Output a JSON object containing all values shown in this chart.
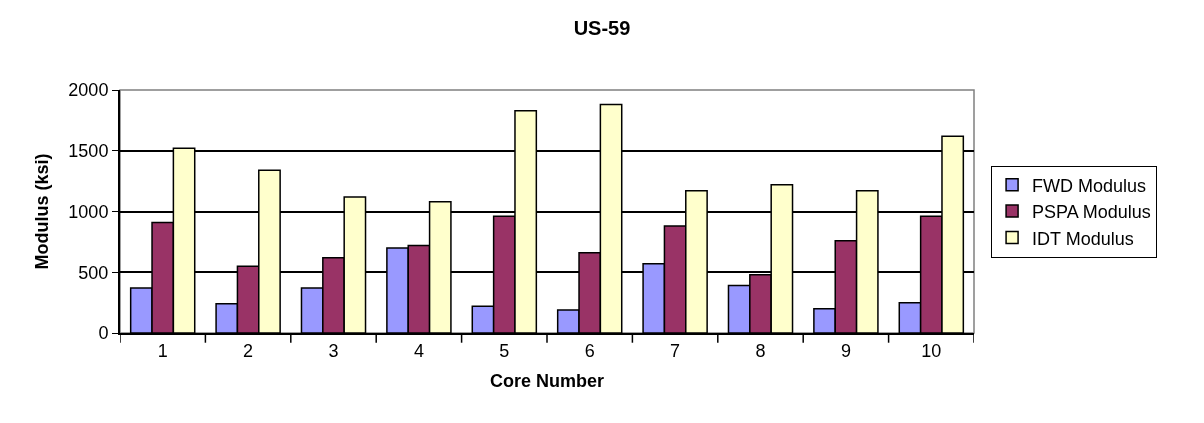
{
  "chart_data": {
    "type": "bar",
    "title": "US-59",
    "xlabel": "Core Number",
    "ylabel": "Modulus (ksi)",
    "categories": [
      "1",
      "2",
      "3",
      "4",
      "5",
      "6",
      "7",
      "8",
      "9",
      "10"
    ],
    "series": [
      {
        "name": "FWD Modulus",
        "color": "#9999ff",
        "values": [
          370,
          240,
          370,
          700,
          220,
          190,
          570,
          390,
          200,
          250
        ]
      },
      {
        "name": "PSPA Modulus",
        "color": "#993366",
        "values": [
          910,
          550,
          620,
          720,
          960,
          660,
          880,
          480,
          760,
          960
        ]
      },
      {
        "name": "IDT Modulus",
        "color": "#ffffcc",
        "values": [
          1520,
          1340,
          1120,
          1080,
          1830,
          1880,
          1170,
          1220,
          1170,
          1620
        ]
      }
    ],
    "ylim": [
      0,
      2000
    ],
    "yticks": [
      0,
      500,
      1000,
      1500,
      2000
    ],
    "grid": "y",
    "legend": "right"
  }
}
